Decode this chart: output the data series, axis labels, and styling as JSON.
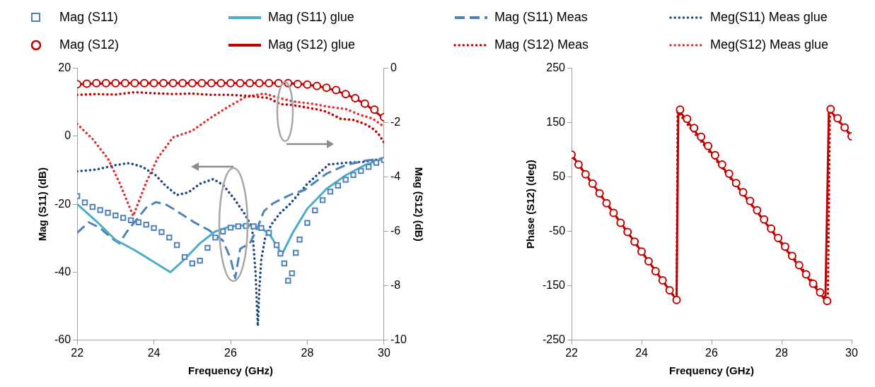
{
  "chart_data": [
    {
      "type": "line",
      "xlabel": "Frequency (GHz)",
      "ylabel": "Mag (S11) (dB)",
      "y2label": "Mag (S12) (dB)",
      "xlim": [
        22,
        30
      ],
      "xticks": [
        22,
        24,
        26,
        28,
        30
      ],
      "ylim": [
        -60,
        20
      ],
      "yticks": [
        -60,
        -40,
        -20,
        0,
        20
      ],
      "y2lim": [
        -10,
        0
      ],
      "y2ticks": [
        -10,
        -8,
        -6,
        -4,
        -2,
        0
      ],
      "grid": false,
      "legend": "top",
      "series": [
        {
          "name": "Mag (S11)",
          "type": "scatter",
          "marker": "square",
          "color": "#4f81bd",
          "x": [
            22,
            22.2,
            22.4,
            22.6,
            22.8,
            23,
            23.2,
            23.4,
            23.6,
            23.8,
            24,
            24.2,
            24.4,
            24.6,
            24.8,
            25,
            25.2,
            25.4,
            25.6,
            25.8,
            26,
            26.2,
            26.4,
            26.6,
            26.8,
            27,
            27.2,
            27.3,
            27.4,
            27.5,
            27.6,
            27.7,
            27.8,
            28,
            28.2,
            28.4,
            28.6,
            28.8,
            29,
            29.2,
            29.4,
            29.6,
            29.8,
            30
          ],
          "values": [
            -17.6,
            -19.5,
            -20.8,
            -21.7,
            -22.5,
            -23.3,
            -24,
            -24.7,
            -25.3,
            -26,
            -27,
            -28.2,
            -29.8,
            -32,
            -35.5,
            -37.4,
            -36.6,
            -32.8,
            -29.8,
            -28,
            -26.9,
            -26.5,
            -26.4,
            -26.5,
            -27,
            -28.4,
            -32,
            -34.5,
            -37.4,
            -42.5,
            -40.3,
            -34.3,
            -30.4,
            -25.5,
            -21.8,
            -18.8,
            -16.3,
            -14.5,
            -12.8,
            -11.4,
            -10.2,
            -9,
            -7.8,
            -7
          ]
        },
        {
          "name": "Mag (S11) glue",
          "line_style": "solid",
          "color": "#4bacc6",
          "x": [
            22,
            22.5,
            23,
            23.5,
            24,
            24.43,
            24.8,
            25.2,
            25.6,
            26,
            26.4,
            26.8,
            27.06,
            27.34,
            27.62,
            28,
            28.5,
            29,
            29.5,
            30
          ],
          "values": [
            -20,
            -25,
            -30.5,
            -33.5,
            -37,
            -40,
            -36.2,
            -31.5,
            -28,
            -26.5,
            -26.2,
            -26.8,
            -29.6,
            -34.7,
            -28.4,
            -21.3,
            -15.5,
            -11.5,
            -8.5,
            -6.5
          ]
        },
        {
          "name": "Mag (S11) Meas",
          "line_style": "dashed",
          "color": "#4f81bd",
          "x": [
            22,
            22.3,
            22.6,
            22.9,
            23.1,
            23.3,
            23.55,
            23.8,
            24.05,
            24.3,
            24.5,
            24.8,
            25.05,
            25.43,
            25.8,
            26,
            26.12,
            26.25,
            26.5,
            26.7,
            26.87,
            27.1,
            27.3,
            27.6,
            27.93,
            28.5,
            29,
            29.5,
            30
          ],
          "values": [
            -28.4,
            -25.3,
            -27,
            -30,
            -31.5,
            -28,
            -24.5,
            -21,
            -19.4,
            -20,
            -21.3,
            -23.5,
            -25.3,
            -27.6,
            -30.7,
            -36,
            -41.7,
            -33.1,
            -31.5,
            -27,
            -22,
            -19.8,
            -18.6,
            -17,
            -15.8,
            -11,
            -8.5,
            -7.2,
            -6.5
          ]
        },
        {
          "name": "Meg(S11) Meas glue",
          "line_style": "dotted",
          "color": "#1f497d",
          "x": [
            22,
            22.5,
            23,
            23.36,
            23.7,
            24.05,
            24.3,
            24.6,
            24.9,
            25.2,
            25.55,
            25.8,
            26.1,
            26.37,
            26.56,
            26.65,
            26.71,
            26.75,
            26.8,
            26.9,
            27.06,
            27.3,
            27.56,
            28,
            28.56,
            29,
            29.5,
            30
          ],
          "values": [
            -10.3,
            -9.8,
            -8.5,
            -7.9,
            -9,
            -11.5,
            -14.5,
            -17.3,
            -16.5,
            -14,
            -12.6,
            -14.3,
            -18.5,
            -22.9,
            -26.8,
            -40,
            -55.8,
            -45,
            -36.2,
            -30,
            -26,
            -22.5,
            -19.8,
            -14,
            -8.3,
            -7.8,
            -7.5,
            -6.5
          ]
        },
        {
          "name": "Mag (S12)",
          "type": "scatter",
          "marker": "circle",
          "axis": "y2",
          "color": "#c00000",
          "x": [
            22,
            22.25,
            22.5,
            22.75,
            23,
            23.25,
            23.5,
            23.75,
            24,
            24.25,
            24.5,
            24.75,
            25,
            25.25,
            25.5,
            25.75,
            26,
            26.25,
            26.5,
            26.75,
            27,
            27.25,
            27.5,
            27.75,
            28,
            28.25,
            28.5,
            28.75,
            29,
            29.25,
            29.5,
            29.75,
            30
          ],
          "values": [
            -0.59,
            -0.57,
            -0.55,
            -0.55,
            -0.55,
            -0.55,
            -0.55,
            -0.55,
            -0.55,
            -0.55,
            -0.55,
            -0.55,
            -0.55,
            -0.55,
            -0.55,
            -0.55,
            -0.55,
            -0.55,
            -0.55,
            -0.55,
            -0.55,
            -0.55,
            -0.55,
            -0.58,
            -0.6,
            -0.65,
            -0.72,
            -0.8,
            -0.95,
            -1.1,
            -1.3,
            -1.52,
            -1.8
          ]
        },
        {
          "name": "Mag (S12) glue",
          "line_style": "solid",
          "axis": "y2",
          "color": "#c00000",
          "x": [
            22,
            23,
            24,
            25,
            26,
            27,
            27.5,
            28,
            28.5,
            29,
            29.5,
            30
          ],
          "values": [
            -0.59,
            -0.55,
            -0.55,
            -0.55,
            -0.55,
            -0.55,
            -0.55,
            -0.6,
            -0.72,
            -0.95,
            -1.3,
            -1.85
          ]
        },
        {
          "name": "Mag (S12) Meas",
          "line_style": "dotted",
          "axis": "y2",
          "color": "#c00000",
          "x": [
            22,
            22.5,
            23,
            23.5,
            24,
            24.5,
            25,
            25.5,
            26,
            26.5,
            27,
            27.3,
            27.6,
            28,
            28.25,
            28.5,
            28.87,
            29.2,
            29.5,
            29.69,
            29.85,
            30
          ],
          "values": [
            -0.98,
            -0.95,
            -0.97,
            -0.88,
            -0.92,
            -0.95,
            -0.93,
            -0.98,
            -0.98,
            -1.02,
            -1.1,
            -1.32,
            -1.35,
            -1.45,
            -1.51,
            -1.6,
            -1.86,
            -1.9,
            -2.05,
            -2.2,
            -2.4,
            -2.73
          ]
        },
        {
          "name": "Meg(S12) Meas glue",
          "line_style": "dotted",
          "axis": "y2",
          "color": "#e03030",
          "x": [
            22,
            22.4,
            22.8,
            23.1,
            23.46,
            23.8,
            24.1,
            24.5,
            25,
            25.44,
            25.9,
            26.37,
            26.87,
            27.3,
            27.62,
            28.1,
            28.56,
            29,
            29.37,
            29.7,
            30
          ],
          "values": [
            -2.05,
            -2.6,
            -3.32,
            -4.2,
            -5.43,
            -4.2,
            -3.3,
            -2.54,
            -2.3,
            -1.86,
            -1.45,
            -1.07,
            -0.93,
            -1.1,
            -1.22,
            -1.3,
            -1.42,
            -1.5,
            -1.71,
            -1.85,
            -2.15
          ]
        }
      ]
    },
    {
      "type": "line",
      "xlabel": "Frequency (GHz)",
      "ylabel": "Phase (S12) (deg)",
      "xlim": [
        22,
        30
      ],
      "xticks": [
        22,
        24,
        26,
        28,
        30
      ],
      "ylim": [
        -250,
        250
      ],
      "yticks": [
        -250,
        -150,
        -50,
        50,
        150,
        250
      ],
      "grid": false,
      "series": [
        {
          "line_style": "solid",
          "color": "#c00000",
          "x": [
            22,
            25,
            25.05,
            29.25,
            29.35,
            30
          ],
          "values": [
            91,
            -176,
            174,
            -177,
            175,
            125
          ]
        },
        {
          "line_style": "dotted",
          "color": "#c00000",
          "x": [
            22,
            25,
            25.03,
            29.32,
            29.38,
            30
          ],
          "values": [
            90,
            -176,
            170,
            -178,
            172,
            124
          ]
        },
        {
          "type": "scatter",
          "marker": "circle",
          "color": "#c00000",
          "x": [
            22,
            22.2,
            22.4,
            22.6,
            22.8,
            23,
            23.2,
            23.4,
            23.6,
            23.8,
            24,
            24.2,
            24.4,
            24.6,
            24.8,
            25,
            25.1,
            25.3,
            25.5,
            25.7,
            25.9,
            26.1,
            26.3,
            26.5,
            26.7,
            26.9,
            27.1,
            27.3,
            27.5,
            27.7,
            27.9,
            28.1,
            28.3,
            28.5,
            28.7,
            28.9,
            29.1,
            29.3,
            29.4,
            29.6,
            29.8,
            30
          ],
          "values": [
            91,
            73,
            55,
            38,
            20,
            2,
            -16,
            -34,
            -51,
            -69,
            -87,
            -105,
            -123,
            -140,
            -158,
            -176,
            174,
            157,
            140,
            124,
            107,
            90,
            73,
            56,
            39,
            22,
            6,
            -11,
            -28,
            -45,
            -62,
            -78,
            -95,
            -112,
            -129,
            -146,
            -162,
            -178,
            175,
            158,
            141,
            125
          ]
        }
      ]
    }
  ]
}
